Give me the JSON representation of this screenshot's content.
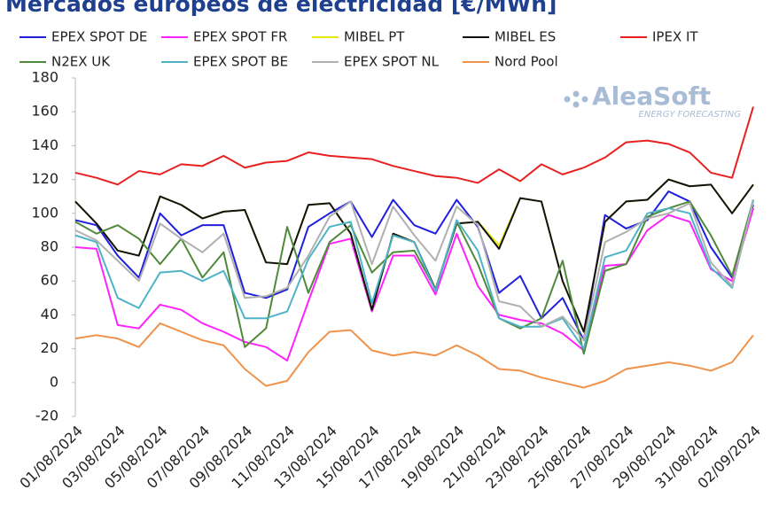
{
  "chart_data": {
    "type": "line",
    "title": "Mercados europeos de electricidad [€/MWh]",
    "watermark": "AleaSoft",
    "watermark_subtitle": "ENERGY FORECASTING",
    "categories": [
      "01/08/2024",
      null,
      "03/08/2024",
      null,
      "05/08/2024",
      null,
      "07/08/2024",
      null,
      "09/08/2024",
      null,
      "11/08/2024",
      null,
      "13/08/2024",
      null,
      "15/08/2024",
      null,
      "17/08/2024",
      null,
      "19/08/2024",
      null,
      "21/08/2024",
      null,
      "23/08/2024",
      null,
      "25/08/2024",
      null,
      "27/08/2024",
      null,
      "29/08/2024",
      null,
      "31/08/2024",
      null,
      "02/09/2024"
    ],
    "ylim": [
      -20,
      180
    ],
    "yticks": [
      -20,
      0,
      20,
      40,
      60,
      80,
      100,
      120,
      140,
      160,
      180
    ],
    "grid": false,
    "series": [
      {
        "name": "EPEX SPOT DE",
        "color": "#1f1fe0",
        "values": [
          96,
          93,
          75,
          62,
          100,
          87,
          93,
          93,
          53,
          50,
          55,
          92,
          100,
          107,
          86,
          108,
          93,
          88,
          108,
          92,
          53,
          63,
          38,
          50,
          25,
          99,
          91,
          96,
          113,
          107,
          80,
          62,
          105
        ]
      },
      {
        "name": "EPEX SPOT FR",
        "color": "#ff22ff",
        "values": [
          80,
          79,
          34,
          32,
          46,
          43,
          35,
          30,
          24,
          21,
          13,
          48,
          82,
          85,
          42,
          75,
          75,
          52,
          88,
          57,
          40,
          37,
          35,
          29,
          19,
          69,
          70,
          90,
          99,
          95,
          67,
          60,
          103
        ]
      },
      {
        "name": "MIBEL PT",
        "color": "#e8e800",
        "values": [
          107,
          94,
          78,
          75,
          110,
          105,
          97,
          101,
          102,
          71,
          70,
          105,
          106,
          88,
          43,
          88,
          83,
          55,
          94,
          95,
          81,
          109,
          107,
          60,
          30,
          95,
          107,
          108,
          120,
          116,
          117,
          100,
          117
        ]
      },
      {
        "name": "MIBEL ES",
        "color": "#111111",
        "values": [
          107,
          94,
          78,
          75,
          110,
          105,
          97,
          101,
          102,
          71,
          70,
          105,
          106,
          88,
          43,
          88,
          83,
          55,
          94,
          95,
          79,
          109,
          107,
          60,
          30,
          95,
          107,
          108,
          120,
          116,
          117,
          100,
          117
        ]
      },
      {
        "name": "IPEX IT",
        "color": "#e82020",
        "values": [
          124,
          121,
          117,
          125,
          123,
          129,
          128,
          134,
          127,
          130,
          131,
          136,
          134,
          133,
          132,
          128,
          125,
          122,
          121,
          118,
          126,
          119,
          129,
          123,
          127,
          133,
          142,
          143,
          141,
          136,
          124,
          121,
          163
        ]
      },
      {
        "name": "N2EX UK",
        "color": "#4e8a3a",
        "values": [
          95,
          88,
          93,
          85,
          70,
          85,
          62,
          77,
          21,
          32,
          92,
          53,
          83,
          93,
          65,
          77,
          78,
          55,
          95,
          70,
          38,
          32,
          38,
          72,
          17,
          66,
          70,
          98,
          103,
          107,
          87,
          63,
          108
        ]
      },
      {
        "name": "EPEX SPOT BE",
        "color": "#4fb3c8",
        "values": [
          87,
          83,
          50,
          44,
          65,
          66,
          60,
          66,
          38,
          38,
          42,
          73,
          92,
          95,
          47,
          87,
          83,
          54,
          96,
          78,
          38,
          33,
          33,
          38,
          20,
          74,
          78,
          100,
          103,
          100,
          68,
          56,
          108
        ]
      },
      {
        "name": "EPEX SPOT NL",
        "color": "#b0b0b0",
        "values": [
          90,
          84,
          72,
          60,
          94,
          85,
          77,
          88,
          50,
          51,
          56,
          75,
          98,
          107,
          70,
          104,
          87,
          72,
          104,
          93,
          48,
          45,
          33,
          39,
          25,
          83,
          89,
          97,
          100,
          106,
          71,
          57,
          107
        ]
      },
      {
        "name": "Nord Pool",
        "color": "#f0924a",
        "values": [
          26,
          28,
          26,
          21,
          35,
          30,
          25,
          22,
          8,
          -2,
          1,
          18,
          30,
          31,
          19,
          16,
          18,
          16,
          22,
          16,
          8,
          7,
          3,
          0,
          -3,
          1,
          8,
          10,
          12,
          10,
          7,
          12,
          28
        ]
      }
    ]
  }
}
